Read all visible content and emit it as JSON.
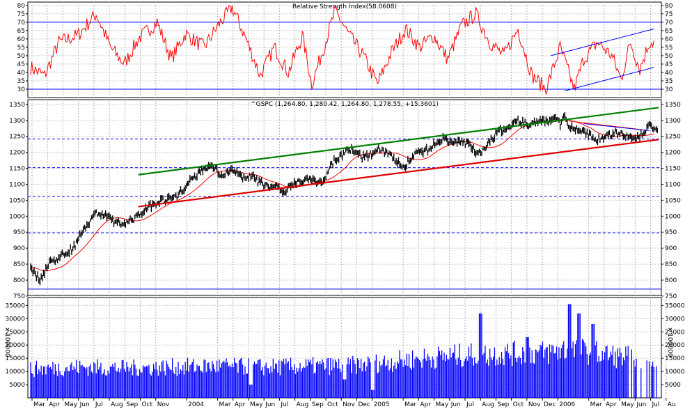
{
  "chart_data": [
    {
      "panel": "rsi",
      "type": "line",
      "title": "Relative Strength Index(58.0608)",
      "ylim": [
        25,
        82
      ],
      "yticks": [
        30,
        35,
        40,
        45,
        50,
        55,
        60,
        65,
        70,
        75,
        80
      ],
      "hlines": [
        70,
        30
      ],
      "grid": true,
      "color": "#ff0000",
      "anchors": [
        [
          0,
          43
        ],
        [
          3,
          38
        ],
        [
          6,
          58
        ],
        [
          10,
          62
        ],
        [
          14,
          75
        ],
        [
          17,
          55
        ],
        [
          20,
          45
        ],
        [
          23,
          60
        ],
        [
          27,
          70
        ],
        [
          30,
          48
        ],
        [
          33,
          63
        ],
        [
          37,
          55
        ],
        [
          40,
          68
        ],
        [
          43,
          79
        ],
        [
          46,
          60
        ],
        [
          49,
          38
        ],
        [
          52,
          55
        ],
        [
          55,
          40
        ],
        [
          58,
          62
        ],
        [
          60,
          33
        ],
        [
          62,
          50
        ],
        [
          65,
          77
        ],
        [
          68,
          62
        ],
        [
          71,
          50
        ],
        [
          74,
          33
        ],
        [
          77,
          52
        ],
        [
          80,
          66
        ],
        [
          83,
          55
        ],
        [
          86,
          62
        ],
        [
          89,
          48
        ],
        [
          92,
          68
        ],
        [
          95,
          75
        ],
        [
          98,
          58
        ],
        [
          101,
          50
        ],
        [
          104,
          66
        ],
        [
          107,
          38
        ],
        [
          110,
          30
        ],
        [
          113,
          55
        ],
        [
          116,
          30
        ],
        [
          118,
          48
        ],
        [
          121,
          58
        ],
        [
          124,
          50
        ],
        [
          126,
          36
        ],
        [
          128,
          58
        ],
        [
          130,
          42
        ],
        [
          132,
          58
        ]
      ],
      "channel_lines": [
        {
          "color": "#0000ff",
          "from": [
            111,
            50
          ],
          "to": [
            133,
            66
          ]
        },
        {
          "color": "#0000ff",
          "from": [
            114,
            29
          ],
          "to": [
            133,
            43
          ]
        }
      ]
    },
    {
      "panel": "price",
      "type": "candlestick",
      "title": "^GSPC (1,264.80, 1,280.42, 1,264.80, 1,278.55, +15.3601)",
      "ylim": [
        752,
        1365
      ],
      "yticks": [
        750,
        800,
        850,
        900,
        950,
        1000,
        1050,
        1100,
        1150,
        1200,
        1250,
        1300,
        1350
      ],
      "dashed_hlines": [
        1242,
        1152,
        1062,
        948
      ],
      "solid_hline": 772,
      "grid": true,
      "color": "#000000",
      "moving_average_color": "#ff0000",
      "anchors": [
        [
          0,
          840
        ],
        [
          2,
          800
        ],
        [
          4,
          855
        ],
        [
          6,
          870
        ],
        [
          9,
          900
        ],
        [
          12,
          975
        ],
        [
          14,
          1010
        ],
        [
          16,
          1000
        ],
        [
          19,
          975
        ],
        [
          22,
          990
        ],
        [
          25,
          1030
        ],
        [
          28,
          1050
        ],
        [
          31,
          1060
        ],
        [
          34,
          1110
        ],
        [
          37,
          1150
        ],
        [
          39,
          1155
        ],
        [
          41,
          1125
        ],
        [
          43,
          1150
        ],
        [
          45,
          1120
        ],
        [
          47,
          1125
        ],
        [
          49,
          1105
        ],
        [
          51,
          1090
        ],
        [
          53,
          1095
        ],
        [
          54,
          1070
        ],
        [
          55,
          1090
        ],
        [
          57,
          1110
        ],
        [
          60,
          1115
        ],
        [
          62,
          1100
        ],
        [
          63,
          1130
        ],
        [
          65,
          1175
        ],
        [
          67,
          1200
        ],
        [
          68,
          1210
        ],
        [
          70,
          1190
        ],
        [
          72,
          1185
        ],
        [
          74,
          1215
        ],
        [
          76,
          1200
        ],
        [
          78,
          1175
        ],
        [
          79,
          1155
        ],
        [
          80,
          1160
        ],
        [
          82,
          1195
        ],
        [
          84,
          1200
        ],
        [
          86,
          1225
        ],
        [
          88,
          1240
        ],
        [
          90,
          1230
        ],
        [
          92,
          1235
        ],
        [
          94,
          1220
        ],
        [
          95,
          1195
        ],
        [
          96,
          1195
        ],
        [
          98,
          1230
        ],
        [
          100,
          1265
        ],
        [
          102,
          1280
        ],
        [
          104,
          1300
        ],
        [
          106,
          1285
        ],
        [
          108,
          1295
        ],
        [
          110,
          1300
        ],
        [
          112,
          1305
        ],
        [
          113,
          1290
        ],
        [
          114,
          1320
        ],
        [
          115,
          1280
        ],
        [
          117,
          1270
        ],
        [
          119,
          1255
        ],
        [
          121,
          1240
        ],
        [
          123,
          1250
        ],
        [
          125,
          1265
        ],
        [
          127,
          1250
        ],
        [
          129,
          1240
        ],
        [
          132,
          1278
        ]
      ],
      "trendlines": [
        {
          "color": "#008000",
          "from": [
            23,
            1130
          ],
          "to": [
            134,
            1340
          ]
        },
        {
          "color": "#e00000",
          "from": [
            23,
            1030
          ],
          "to": [
            134,
            1240
          ]
        }
      ],
      "annotation_lines": [
        {
          "color": "#ff0000",
          "from": [
            115,
            1298
          ],
          "to": [
            131,
            1270
          ]
        },
        {
          "color": "#0000ff",
          "from": [
            118,
            1290
          ],
          "to": [
            132,
            1268
          ]
        }
      ]
    },
    {
      "panel": "volume",
      "type": "bar",
      "ylim": [
        0,
        38000
      ],
      "yticks": [
        5000,
        10000,
        15000,
        20000,
        25000,
        30000,
        35000
      ],
      "unit_label": "x 100000",
      "grid": true,
      "color": "#0000ff",
      "base_anchors": [
        [
          0,
          14000
        ],
        [
          10,
          15000
        ],
        [
          20,
          14500
        ],
        [
          30,
          15000
        ],
        [
          40,
          15500
        ],
        [
          50,
          15000
        ],
        [
          60,
          15500
        ],
        [
          70,
          16000
        ],
        [
          80,
          18500
        ],
        [
          90,
          20500
        ],
        [
          100,
          21500
        ],
        [
          110,
          22000
        ],
        [
          115,
          24000
        ],
        [
          120,
          22000
        ],
        [
          126,
          20000
        ]
      ],
      "spikes": [
        [
          47,
          5000
        ],
        [
          67,
          7000
        ],
        [
          73,
          3000
        ],
        [
          96,
          32000
        ],
        [
          106,
          23000
        ],
        [
          115,
          35500
        ],
        [
          117,
          32000
        ],
        [
          120,
          28000
        ]
      ],
      "sparse_from": 127
    }
  ],
  "x_axis": {
    "months": [
      "Mar",
      "Apr",
      "May",
      "Jun",
      "Jul",
      "Aug",
      "Sep",
      "Oct",
      "Nov",
      "2004",
      "Mar",
      "Apr",
      "May",
      "Jun",
      "Jul",
      "Aug",
      "Sep",
      "Oct",
      "Nov",
      "Dec",
      "2005",
      "Mar",
      "Apr",
      "May",
      "Jun",
      "Jul",
      "Aug",
      "Sep",
      "Oct",
      "Nov",
      "Dec",
      "2006",
      "Mar",
      "Apr",
      "May",
      "Jun",
      "Jul",
      "Au"
    ],
    "month_index": [
      0,
      1,
      2,
      3,
      4,
      5,
      6,
      7,
      8,
      10,
      12,
      13,
      14,
      15,
      16,
      17,
      18,
      19,
      20,
      21,
      22,
      24,
      25,
      26,
      27,
      28,
      29,
      30,
      31,
      32,
      33,
      34,
      36,
      37,
      38,
      39,
      40,
      41
    ],
    "bars_per_month": 3.3,
    "total_bars": 134
  }
}
